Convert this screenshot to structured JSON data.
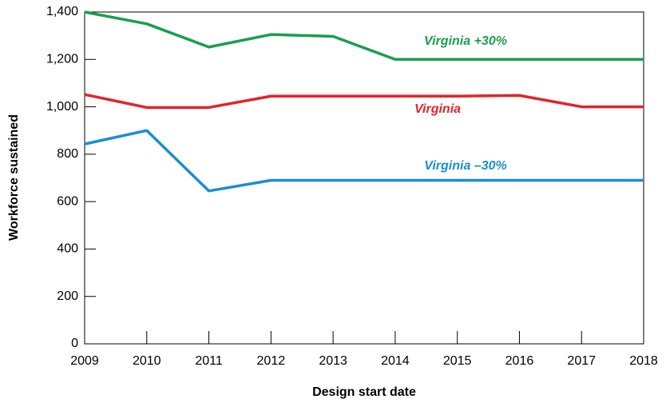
{
  "chart_data": {
    "type": "line",
    "x_label": "Design start date",
    "y_label": "Workforce sustained",
    "x": [
      2009,
      2010,
      2011,
      2012,
      2013,
      2014,
      2015,
      2016,
      2017,
      2018
    ],
    "series": [
      {
        "name": "Virginia +30%",
        "color": "#1a9e4e",
        "values": [
          1400,
          1350,
          1252,
          1305,
          1297,
          1200,
          1200,
          1200,
          1200,
          1200
        ]
      },
      {
        "name": "Virginia",
        "color": "#e3232c",
        "values": [
          1052,
          997,
          997,
          1045,
          1045,
          1045,
          1045,
          1048,
          1000,
          1000
        ]
      },
      {
        "name": "Virginia –30%",
        "color": "#1a8fcf",
        "values": [
          843,
          900,
          645,
          690,
          690,
          690,
          690,
          690,
          690,
          690
        ]
      }
    ],
    "xlim": [
      2009,
      2018
    ],
    "xticks": [
      2009,
      2010,
      2011,
      2012,
      2013,
      2014,
      2015,
      2016,
      2017,
      2018
    ],
    "ylim": [
      0,
      1400
    ],
    "yticks": [
      0,
      200,
      400,
      600,
      800,
      {
        "value": 1000,
        "label": "1,000"
      },
      {
        "value": 1200,
        "label": "1,200"
      },
      {
        "value": 1400,
        "label": "1,400"
      }
    ]
  }
}
